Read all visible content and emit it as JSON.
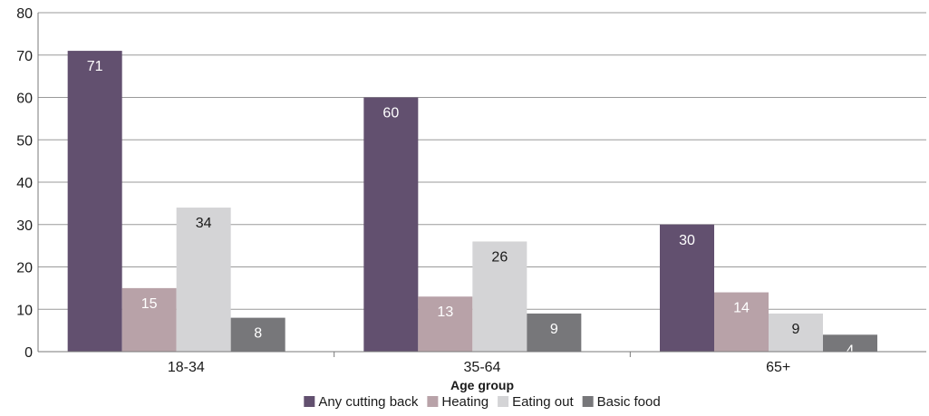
{
  "chart_data": {
    "type": "bar",
    "xlabel": "Age group",
    "ylabel": "",
    "categories": [
      "18-34",
      "35-64",
      "65+"
    ],
    "ylim": [
      0,
      80
    ],
    "yticks": [
      0,
      10,
      20,
      30,
      40,
      50,
      60,
      70,
      80
    ],
    "grid": true,
    "legend_position": "bottom",
    "series": [
      {
        "name": "Any cutting back",
        "color": "#62506f",
        "label_color": "#ffffff",
        "values": [
          71,
          60,
          30
        ]
      },
      {
        "name": "Heating",
        "color": "#b8a2a8",
        "label_color": "#ffffff",
        "values": [
          15,
          13,
          14
        ]
      },
      {
        "name": "Eating out",
        "color": "#d4d4d6",
        "label_color": "#1a1a1a",
        "values": [
          34,
          26,
          9
        ]
      },
      {
        "name": "Basic food",
        "color": "#77777a",
        "label_color": "#ffffff",
        "values": [
          8,
          9,
          4
        ]
      }
    ]
  }
}
